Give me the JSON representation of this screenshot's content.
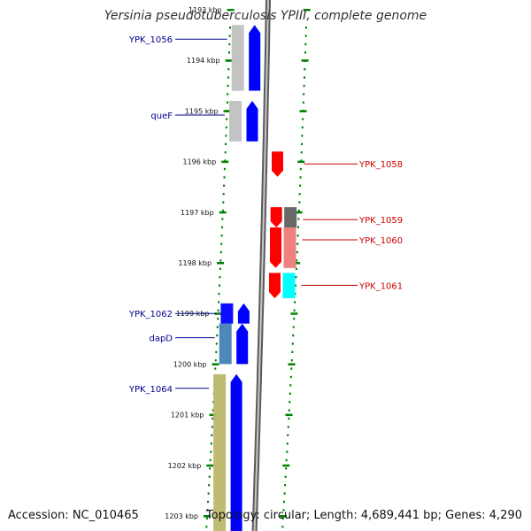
{
  "title": "Yersinia pseudotuberculosis YPIII, complete genome",
  "accession": "Accession: NC_010465",
  "summary": "Topology: circular; Length: 4,689,441 bp; Genes: 4,290",
  "colors": {
    "forward_gene": "#0000ff",
    "reverse_gene": "#ff0000",
    "label_forward": "#00008b",
    "label_reverse": "#cc0000",
    "tick": "#008000",
    "backbone": "#808080"
  },
  "ticks": [
    {
      "label": "1193 kbp",
      "kbp": 1193
    },
    {
      "label": "1194 kbp",
      "kbp": 1194
    },
    {
      "label": "1195 kbp",
      "kbp": 1195
    },
    {
      "label": "1196 kbp",
      "kbp": 1196
    },
    {
      "label": "1197 kbp",
      "kbp": 1197
    },
    {
      "label": "1198 kbp",
      "kbp": 1198
    },
    {
      "label": "1199 kbp",
      "kbp": 1199
    },
    {
      "label": "1200 kbp",
      "kbp": 1200
    },
    {
      "label": "1201 kbp",
      "kbp": 1201
    },
    {
      "label": "1202 kbp",
      "kbp": 1202
    },
    {
      "label": "1203 kbp",
      "kbp": 1203
    }
  ],
  "genes_forward": [
    {
      "label": "YPK_1056",
      "start": 1193.3,
      "end": 1194.6,
      "color": "#c0c0c0"
    },
    {
      "label": "queF",
      "start": 1194.8,
      "end": 1195.6,
      "color": "#c0c0c0"
    },
    {
      "label": "YPK_1062",
      "start": 1198.8,
      "end": 1199.2,
      "color": "#0000ff"
    },
    {
      "label": "dapD",
      "start": 1199.2,
      "end": 1200.0,
      "color": "#4682b4"
    },
    {
      "label": "YPK_1064",
      "start": 1200.2,
      "end": 1203.3,
      "color": "#bdb76b"
    }
  ],
  "genes_reverse": [
    {
      "label": "YPK_1058",
      "start": 1195.8,
      "end": 1196.3,
      "color": "#ff0000"
    },
    {
      "label": "YPK_1059",
      "start": 1196.9,
      "end": 1197.3,
      "color": "#696969"
    },
    {
      "label": "YPK_1060",
      "start": 1197.3,
      "end": 1198.1,
      "color": "#f08080"
    },
    {
      "label": "YPK_1061",
      "start": 1198.2,
      "end": 1198.7,
      "color": "#00ffff"
    }
  ]
}
